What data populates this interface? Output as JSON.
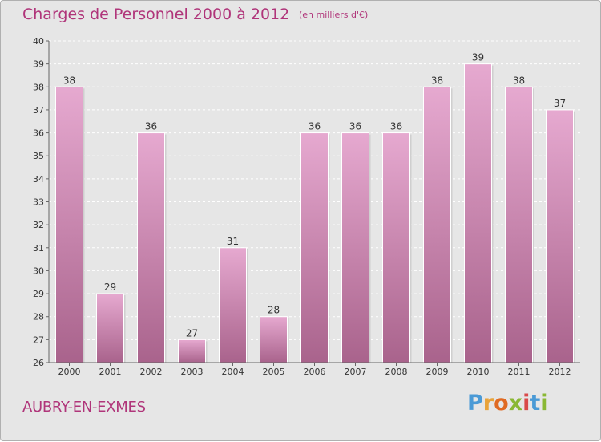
{
  "header": {
    "title": "Charges de Personnel 2000 à 2012",
    "subtitle": "(en milliers d'€)"
  },
  "footer": {
    "commune": "AUBRY-EN-EXMES",
    "logo_text": "Proxiti"
  },
  "colors": {
    "title": "#b0357a",
    "bar_top": "#e6a9d0",
    "bar_bottom": "#a9638c",
    "background": "#e6e6e6",
    "logo_letters": [
      "#4a9ad6",
      "#e8a33a",
      "#e06a22",
      "#8ab834",
      "#d94a4a",
      "#4a9ad6",
      "#8ab834"
    ]
  },
  "chart_data": {
    "type": "bar",
    "title": "Charges de Personnel 2000 à 2012",
    "subtitle": "(en milliers d'€)",
    "categories": [
      "2000",
      "2001",
      "2002",
      "2003",
      "2004",
      "2005",
      "2006",
      "2007",
      "2008",
      "2009",
      "2010",
      "2011",
      "2012"
    ],
    "values": [
      38,
      29,
      36,
      27,
      31,
      28,
      36,
      36,
      36,
      38,
      39,
      38,
      37
    ],
    "data_labels": [
      "38",
      "29",
      "36",
      "27",
      "31",
      "28",
      "36",
      "36",
      "36",
      "38",
      "39",
      "38",
      "37"
    ],
    "ylim": [
      26,
      40
    ],
    "yticks": [
      26,
      27,
      28,
      29,
      30,
      31,
      32,
      33,
      34,
      35,
      36,
      37,
      38,
      39,
      40
    ],
    "grid": true
  }
}
